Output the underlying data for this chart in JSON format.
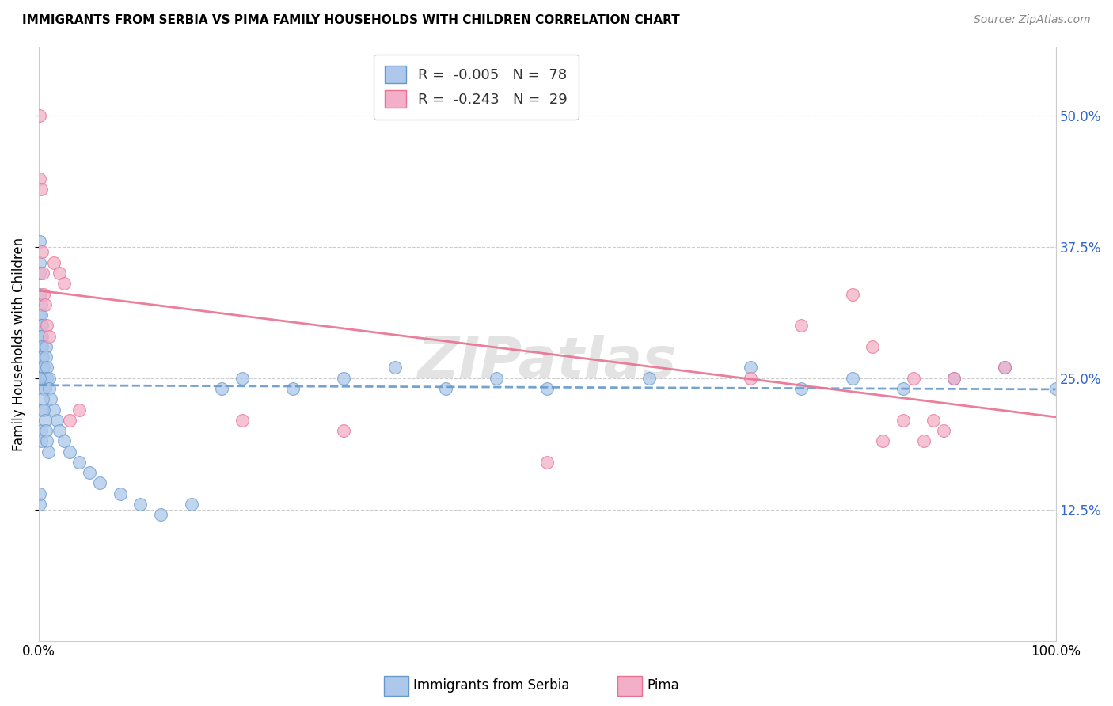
{
  "title": "IMMIGRANTS FROM SERBIA VS PIMA FAMILY HOUSEHOLDS WITH CHILDREN CORRELATION CHART",
  "source": "Source: ZipAtlas.com",
  "ylabel": "Family Households with Children",
  "legend_serbia_r": "R = ",
  "legend_serbia_rval": "-0.005",
  "legend_serbia_n": "   N = ",
  "legend_serbia_nval": "78",
  "legend_pima_r": "R = ",
  "legend_pima_rval": "-0.243",
  "legend_pima_n": "   N = ",
  "legend_pima_nval": "29",
  "legend_label_serbia": "Immigrants from Serbia",
  "legend_label_pima": "Pima",
  "scatter_color_serbia": "#adc8ea",
  "scatter_color_pima": "#f4afc8",
  "edge_color_serbia": "#6699cc",
  "edge_color_pima": "#e87090",
  "trendline_color_serbia": "#6699cc",
  "trendline_color_pima": "#e87090",
  "serbia_x": [
    0.001,
    0.001,
    0.001,
    0.001,
    0.001,
    0.001,
    0.001,
    0.001,
    0.001,
    0.001,
    0.002,
    0.002,
    0.002,
    0.002,
    0.002,
    0.002,
    0.002,
    0.002,
    0.003,
    0.003,
    0.003,
    0.003,
    0.003,
    0.004,
    0.004,
    0.004,
    0.005,
    0.005,
    0.005,
    0.006,
    0.006,
    0.007,
    0.007,
    0.008,
    0.008,
    0.01,
    0.01,
    0.012,
    0.015,
    0.018,
    0.02,
    0.025,
    0.03,
    0.04,
    0.05,
    0.06,
    0.08,
    0.1,
    0.12,
    0.15,
    0.18,
    0.2,
    0.25,
    0.3,
    0.35,
    0.4,
    0.45,
    0.5,
    0.6,
    0.7,
    0.75,
    0.8,
    0.85,
    0.9,
    0.95,
    1.0,
    0.001,
    0.001,
    0.001,
    0.002,
    0.002,
    0.003,
    0.004,
    0.005,
    0.006,
    0.007,
    0.008,
    0.009
  ],
  "serbia_y": [
    0.38,
    0.36,
    0.35,
    0.33,
    0.31,
    0.3,
    0.29,
    0.28,
    0.27,
    0.26,
    0.32,
    0.31,
    0.3,
    0.29,
    0.28,
    0.27,
    0.26,
    0.25,
    0.3,
    0.29,
    0.28,
    0.27,
    0.26,
    0.27,
    0.26,
    0.25,
    0.26,
    0.25,
    0.24,
    0.25,
    0.24,
    0.28,
    0.27,
    0.26,
    0.25,
    0.25,
    0.24,
    0.23,
    0.22,
    0.21,
    0.2,
    0.19,
    0.18,
    0.17,
    0.16,
    0.15,
    0.14,
    0.13,
    0.12,
    0.13,
    0.24,
    0.25,
    0.24,
    0.25,
    0.26,
    0.24,
    0.25,
    0.24,
    0.25,
    0.26,
    0.24,
    0.25,
    0.24,
    0.25,
    0.26,
    0.24,
    0.25,
    0.13,
    0.14,
    0.2,
    0.19,
    0.22,
    0.23,
    0.22,
    0.21,
    0.2,
    0.19,
    0.18
  ],
  "pima_x": [
    0.001,
    0.001,
    0.002,
    0.003,
    0.004,
    0.005,
    0.006,
    0.008,
    0.01,
    0.015,
    0.02,
    0.025,
    0.03,
    0.04,
    0.2,
    0.3,
    0.5,
    0.7,
    0.75,
    0.8,
    0.82,
    0.83,
    0.85,
    0.86,
    0.87,
    0.88,
    0.89,
    0.9,
    0.95
  ],
  "pima_y": [
    0.5,
    0.44,
    0.43,
    0.37,
    0.35,
    0.33,
    0.32,
    0.3,
    0.29,
    0.36,
    0.35,
    0.34,
    0.21,
    0.22,
    0.21,
    0.2,
    0.17,
    0.25,
    0.3,
    0.33,
    0.28,
    0.19,
    0.21,
    0.25,
    0.19,
    0.21,
    0.2,
    0.25,
    0.26
  ],
  "xlim": [
    0.0,
    1.0
  ],
  "ylim": [
    0.0,
    0.565
  ],
  "yticks": [
    0.125,
    0.25,
    0.375,
    0.5
  ],
  "xticks": [
    0.0,
    1.0
  ],
  "xtick_labels": [
    "0.0%",
    "100.0%"
  ],
  "watermark": "ZIPatlas",
  "background_color": "#ffffff",
  "grid_color": "#cccccc"
}
